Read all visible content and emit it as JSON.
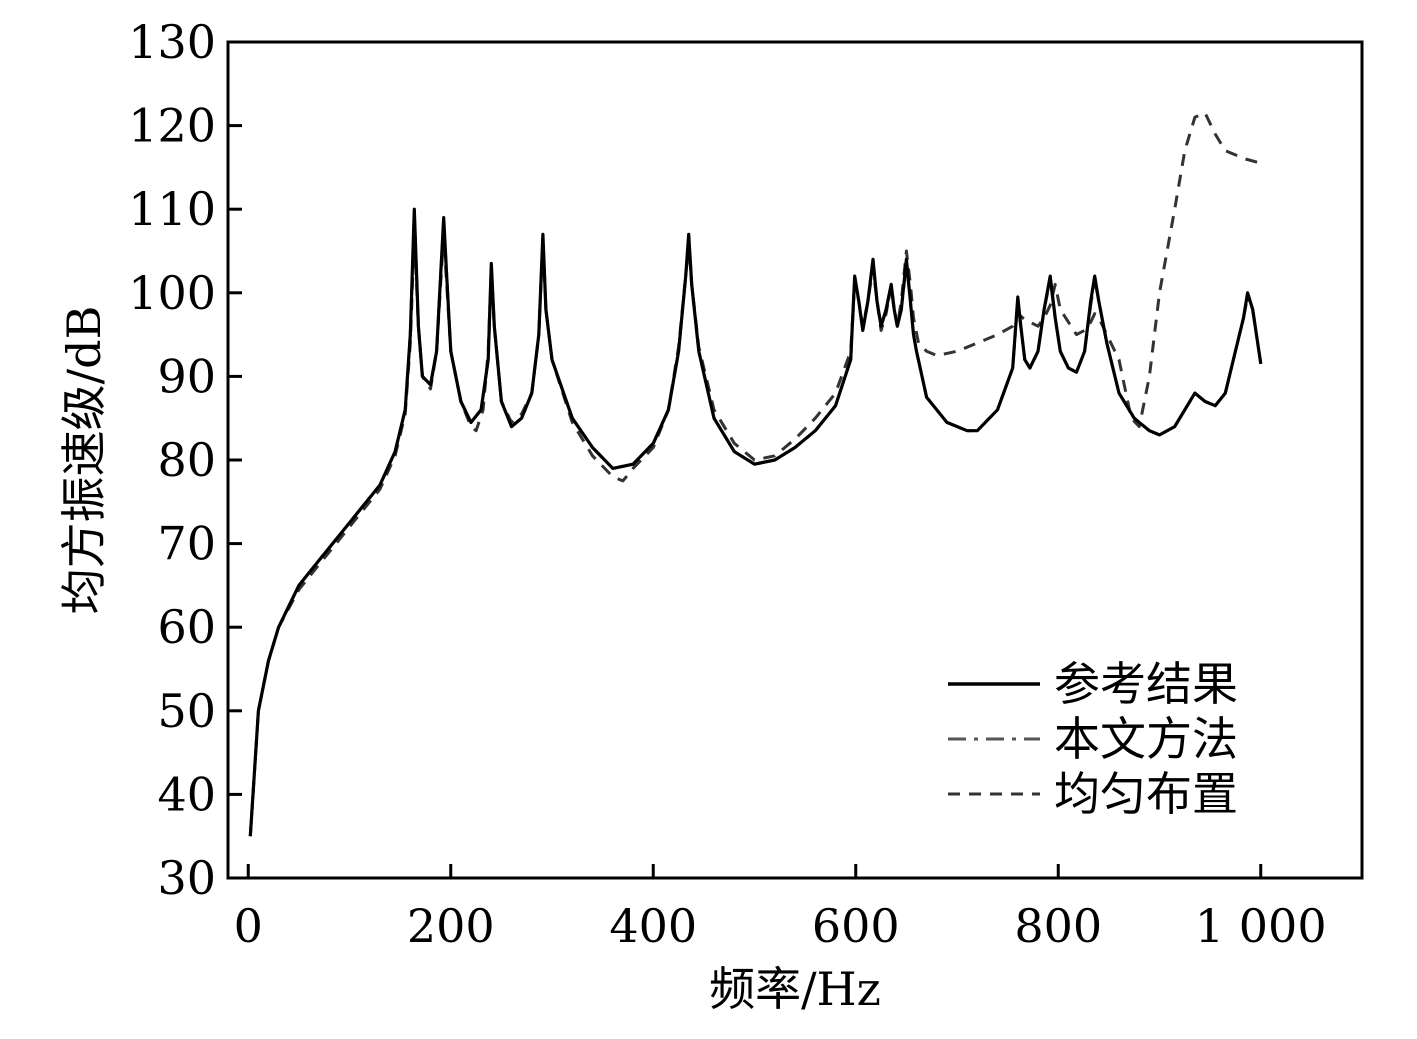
{
  "chart_data": {
    "type": "line",
    "title": "",
    "xlabel": "频率/Hz",
    "ylabel": "均方振速级/dB",
    "xlim": [
      -20,
      1100
    ],
    "ylim": [
      30,
      130
    ],
    "x_ticks": [
      0,
      200,
      400,
      600,
      800,
      1000
    ],
    "x_tick_labels": [
      "0",
      "200",
      "400",
      "600",
      "800",
      "1 000"
    ],
    "y_ticks": [
      30,
      40,
      50,
      60,
      70,
      80,
      90,
      100,
      110,
      120,
      130
    ],
    "y_tick_labels": [
      "30",
      "40",
      "50",
      "60",
      "70",
      "80",
      "90",
      "100",
      "110",
      "120",
      "130"
    ],
    "grid": false,
    "legend_position": "bottom-right",
    "series": [
      {
        "name": "参考结果",
        "color": "#000000",
        "style": "solid",
        "x": [
          2,
          10,
          20,
          30,
          50,
          70,
          90,
          110,
          130,
          145,
          155,
          160,
          164,
          168,
          172,
          180,
          186,
          190,
          193,
          196,
          200,
          210,
          220,
          230,
          237,
          240,
          243,
          250,
          260,
          270,
          280,
          287,
          291,
          294,
          300,
          320,
          340,
          360,
          380,
          400,
          415,
          425,
          432,
          435,
          438,
          445,
          460,
          480,
          500,
          520,
          540,
          560,
          580,
          595,
          599,
          603,
          607,
          612,
          617,
          621,
          625,
          630,
          635,
          638,
          641,
          645,
          650,
          654,
          657,
          660,
          670,
          690,
          710,
          720,
          740,
          755,
          760,
          763,
          767,
          772,
          780,
          786,
          792,
          797,
          802,
          810,
          818,
          826,
          832,
          836,
          840,
          848,
          860,
          875,
          890,
          900,
          915,
          925,
          935,
          945,
          955,
          965,
          975,
          983,
          987,
          992,
          1000
        ],
        "y": [
          35,
          50,
          56,
          60,
          65,
          68,
          71,
          74,
          77,
          81,
          86,
          95,
          110,
          96,
          90,
          89,
          93,
          102,
          109,
          102,
          93,
          87,
          84.5,
          86,
          92,
          103.5,
          96,
          87,
          84,
          85,
          88,
          95,
          107,
          98,
          92,
          85,
          81.5,
          79,
          79.5,
          82,
          86,
          93,
          102,
          107,
          101,
          93,
          85,
          81,
          79.5,
          80,
          81.5,
          83.5,
          86.5,
          92,
          102,
          99,
          95.5,
          99,
          104,
          99,
          96,
          98,
          101,
          98,
          96,
          98,
          104,
          99,
          95,
          93,
          87.5,
          84.5,
          83.5,
          83.5,
          86,
          91,
          99.5,
          96,
          92,
          91,
          93,
          98,
          102,
          97,
          93,
          91,
          90.5,
          93,
          99,
          102,
          99,
          94,
          88,
          85,
          83.5,
          83,
          84,
          86,
          88,
          87,
          86.5,
          88,
          93,
          97,
          100,
          98,
          91.5
        ]
      },
      {
        "name": "本文方法",
        "color": "#555555",
        "style": "dashdot",
        "x": [
          2,
          10,
          20,
          30,
          50,
          70,
          90,
          110,
          130,
          145,
          155,
          160,
          164,
          168,
          172,
          180,
          186,
          190,
          193,
          196,
          200,
          210,
          220,
          230,
          237,
          240,
          243,
          250,
          260,
          270,
          280,
          287,
          291,
          294,
          300,
          320,
          340,
          360,
          380,
          400,
          415,
          425,
          432,
          435,
          438,
          445,
          460,
          480,
          500,
          520,
          540,
          560,
          580,
          595,
          599,
          603,
          607,
          612,
          617,
          621,
          625,
          630,
          635,
          638,
          641,
          645,
          650,
          654,
          657,
          660,
          670,
          690,
          710,
          720,
          740,
          755,
          760,
          763,
          767,
          772,
          780,
          786,
          792,
          797,
          802,
          810,
          818,
          826,
          832,
          836,
          840,
          848,
          860,
          875,
          890,
          900,
          915,
          925,
          935,
          945,
          955,
          965,
          975,
          983,
          987,
          992,
          1000
        ],
        "y": [
          35,
          50,
          56,
          60,
          65,
          68,
          71,
          74,
          77,
          81,
          86,
          95,
          109.5,
          96,
          90,
          89,
          93,
          102,
          108.5,
          102,
          93,
          87,
          84.5,
          86,
          92,
          103,
          96,
          87,
          84,
          85,
          88,
          95,
          106.5,
          98,
          92,
          85,
          81.5,
          79,
          79.5,
          82,
          86,
          93,
          102,
          106.5,
          101,
          93,
          85,
          81,
          79.5,
          80,
          81.5,
          83.5,
          86.5,
          92,
          101.5,
          99,
          95.5,
          99,
          103.5,
          99,
          96,
          98,
          100.5,
          98,
          96,
          98,
          103.5,
          99,
          95,
          93,
          87.5,
          84.5,
          83.5,
          83.5,
          86,
          91,
          99,
          96,
          92,
          91,
          93,
          98,
          101.5,
          97,
          93,
          91,
          90.5,
          93,
          98.5,
          101.5,
          99,
          94,
          88,
          85,
          83.5,
          83,
          84,
          86,
          88,
          87,
          86.5,
          88,
          93,
          97,
          99.5,
          98,
          91.5
        ]
      },
      {
        "name": "均匀布置",
        "color": "#333333",
        "style": "dashed",
        "x": [
          2,
          10,
          20,
          30,
          50,
          70,
          90,
          110,
          130,
          145,
          155,
          160,
          164,
          168,
          172,
          180,
          186,
          190,
          193,
          196,
          200,
          210,
          220,
          225,
          232,
          237,
          240,
          243,
          250,
          260,
          270,
          280,
          287,
          291,
          294,
          300,
          320,
          340,
          360,
          370,
          380,
          400,
          415,
          425,
          432,
          435,
          438,
          445,
          460,
          480,
          500,
          520,
          540,
          560,
          580,
          595,
          599,
          603,
          607,
          612,
          617,
          621,
          625,
          630,
          635,
          638,
          641,
          645,
          650,
          654,
          657,
          662,
          670,
          680,
          700,
          720,
          740,
          755,
          760,
          765,
          772,
          780,
          786,
          792,
          797,
          802,
          810,
          818,
          826,
          832,
          836,
          840,
          848,
          860,
          872,
          880,
          890,
          900,
          915,
          925,
          935,
          945,
          955,
          965,
          975,
          985,
          1000
        ],
        "y": [
          35,
          50,
          56,
          60,
          64.5,
          67.5,
          70.5,
          73.5,
          76.5,
          80.5,
          85.5,
          94,
          107,
          96,
          90,
          88.5,
          93,
          101,
          107,
          101,
          93,
          87,
          84,
          83.5,
          86,
          93,
          103,
          96,
          87,
          84.5,
          85.5,
          88,
          95,
          106.5,
          98,
          92,
          84.5,
          80.5,
          78,
          77.5,
          79,
          81.5,
          86,
          93.5,
          102,
          106,
          101,
          93.5,
          86,
          82,
          80,
          80.5,
          82.5,
          85,
          88,
          93,
          101.5,
          99,
          96,
          99,
          103,
          99,
          95.5,
          97.5,
          101,
          98,
          96,
          99,
          105,
          101,
          97,
          94,
          93,
          92.5,
          93,
          94,
          95,
          96,
          97.5,
          97,
          96.5,
          96,
          97,
          98.5,
          101,
          98,
          96.5,
          95,
          95.5,
          96.5,
          97.5,
          97,
          95,
          92,
          85,
          84,
          90,
          100,
          110,
          117,
          121,
          121.5,
          119,
          117,
          116.5,
          116,
          115.5
        ]
      }
    ]
  }
}
